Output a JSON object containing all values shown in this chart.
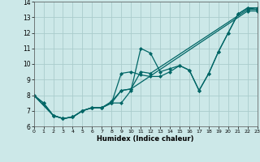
{
  "xlabel": "Humidex (Indice chaleur)",
  "ylabel": "",
  "bg_color": "#cce8e8",
  "grid_color": "#aacccc",
  "line_color": "#006666",
  "marker": "D",
  "markersize": 2.0,
  "linewidth": 0.9,
  "xlim": [
    0,
    23
  ],
  "ylim": [
    6,
    14
  ],
  "xticks": [
    0,
    1,
    2,
    3,
    4,
    5,
    6,
    7,
    8,
    9,
    10,
    11,
    12,
    13,
    14,
    15,
    16,
    17,
    18,
    19,
    20,
    21,
    22,
    23
  ],
  "yticks": [
    6,
    7,
    8,
    9,
    10,
    11,
    12,
    13,
    14
  ],
  "lines": [
    {
      "x": [
        0,
        1,
        2,
        3,
        4,
        5,
        6,
        7,
        8,
        9,
        10,
        11,
        12,
        13,
        14,
        15,
        16,
        17,
        18,
        19,
        20,
        21,
        22,
        23
      ],
      "y": [
        8.0,
        7.5,
        6.7,
        6.5,
        6.6,
        7.0,
        7.2,
        7.2,
        7.5,
        7.5,
        8.3,
        11.0,
        10.7,
        9.5,
        9.7,
        9.9,
        9.6,
        8.3,
        9.4,
        10.8,
        12.0,
        13.2,
        13.6,
        13.6
      ]
    },
    {
      "x": [
        0,
        1,
        2,
        3,
        4,
        5,
        6,
        7,
        8,
        9,
        10,
        11,
        12,
        13,
        14,
        15,
        16,
        17,
        18,
        19,
        20,
        21,
        22,
        23
      ],
      "y": [
        8.0,
        7.5,
        6.7,
        6.5,
        6.6,
        7.0,
        7.2,
        7.2,
        7.5,
        9.4,
        9.5,
        9.3,
        9.2,
        9.2,
        9.5,
        9.9,
        9.6,
        8.3,
        9.4,
        10.8,
        12.0,
        13.2,
        13.6,
        13.5
      ]
    },
    {
      "x": [
        0,
        2,
        3,
        4,
        5,
        6,
        7,
        8,
        9,
        10,
        11,
        12,
        22,
        23
      ],
      "y": [
        8.0,
        6.7,
        6.5,
        6.6,
        7.0,
        7.2,
        7.2,
        7.5,
        8.3,
        8.4,
        9.5,
        9.4,
        13.5,
        13.5
      ]
    },
    {
      "x": [
        0,
        2,
        3,
        4,
        5,
        6,
        7,
        8,
        9,
        10,
        22,
        23
      ],
      "y": [
        8.0,
        6.7,
        6.5,
        6.6,
        7.0,
        7.2,
        7.2,
        7.6,
        8.3,
        8.4,
        13.4,
        13.4
      ]
    }
  ]
}
